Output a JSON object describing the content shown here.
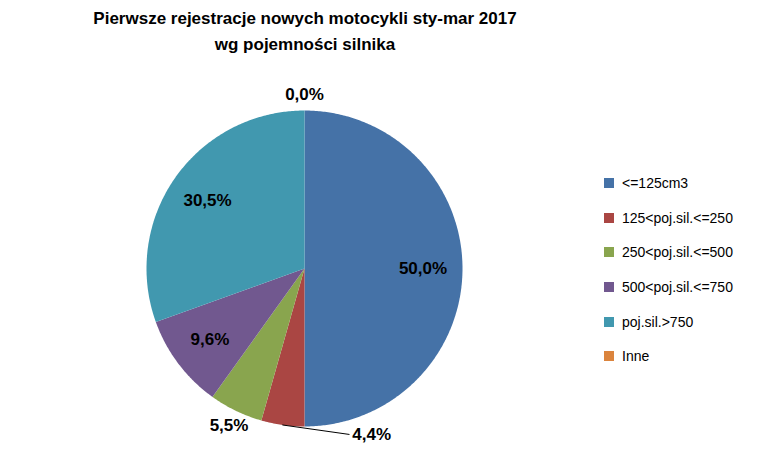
{
  "chart_data": {
    "type": "pie",
    "title": "Pierwsze rejestracje nowych motocykli sty-mar 2017",
    "subtitle": "wg pojemności silnika",
    "categories": [
      "<=125cm3",
      "125<poj.sil.<=250",
      "250<poj.sil.<=500",
      "500<poj.sil.<=750",
      "poj.sil.>750",
      "Inne"
    ],
    "values": [
      50.0,
      4.4,
      5.5,
      9.6,
      30.5,
      0.0
    ],
    "value_labels": [
      "50,0%",
      "4,4%",
      "5,5%",
      "9,6%",
      "30,5%",
      "0,0%"
    ],
    "colors": [
      "#4572a7",
      "#aa4643",
      "#89a54e",
      "#71588f",
      "#4198af",
      "#db843d"
    ],
    "data_labels": true,
    "legend": "right"
  }
}
